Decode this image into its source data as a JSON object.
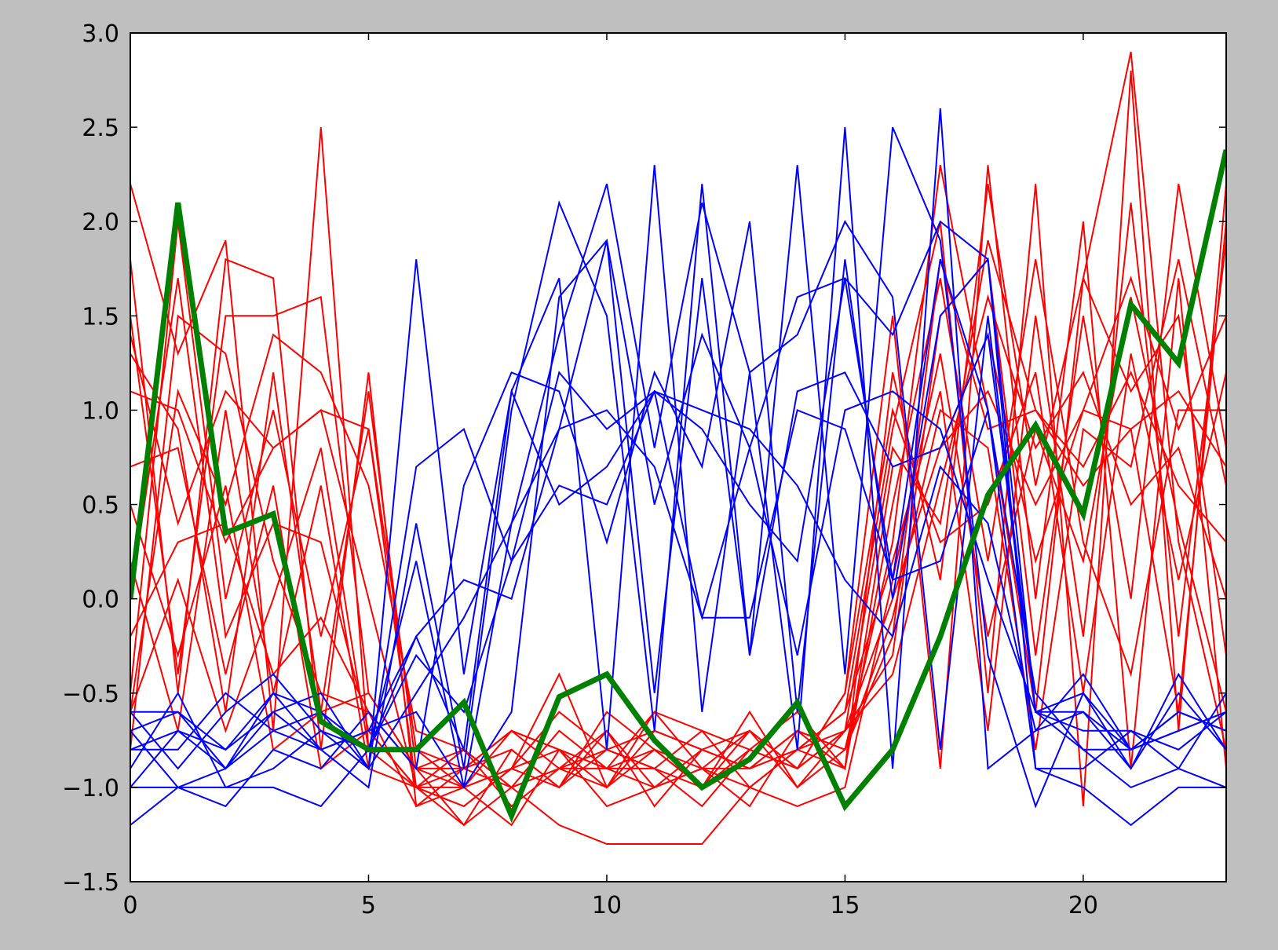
{
  "chart_data": {
    "type": "line",
    "title": "",
    "xlabel": "",
    "ylabel": "",
    "xlim": [
      0,
      23
    ],
    "ylim": [
      -1.5,
      3.0
    ],
    "grid": false,
    "legend": "none",
    "background": "#bfbfbf",
    "plot_background": "#ffffff",
    "x": [
      0,
      1,
      2,
      3,
      4,
      5,
      6,
      7,
      8,
      9,
      10,
      11,
      12,
      13,
      14,
      15,
      16,
      17,
      18,
      19,
      20,
      21,
      22,
      23
    ],
    "x_ticks": [
      0,
      5,
      10,
      15,
      20
    ],
    "x_tick_labels": [
      "0",
      "5",
      "10",
      "15",
      "20"
    ],
    "y_ticks": [
      -1.5,
      -1.0,
      -0.5,
      0.0,
      0.5,
      1.0,
      1.5,
      2.0,
      2.5,
      3.0
    ],
    "y_tick_labels": [
      "−1.5",
      "−1.0",
      "−0.5",
      "0.0",
      "0.5",
      "1.0",
      "1.5",
      "2.0",
      "2.5",
      "3.0"
    ],
    "series": [
      {
        "color": "#ff0000",
        "width": 2,
        "values": [
          2.2,
          1.3,
          1.9,
          -0.7,
          2.5,
          -0.8,
          -1.0,
          -0.9,
          -0.7,
          -0.9,
          -0.7,
          -1.1,
          -0.8,
          -0.9,
          -0.7,
          -0.8,
          0.3,
          2.3,
          1.0,
          -0.6,
          1.7,
          2.9,
          0.3,
          -0.8
        ]
      },
      {
        "color": "#ff0000",
        "width": 2,
        "values": [
          1.8,
          -0.5,
          1.8,
          1.7,
          -0.8,
          1.2,
          -1.1,
          -1.0,
          -0.9,
          -0.4,
          -1.0,
          -0.6,
          -0.9,
          -0.7,
          -0.9,
          -0.5,
          1.5,
          -0.9,
          2.3,
          0.0,
          2.0,
          -0.9,
          1.7,
          -0.9
        ]
      },
      {
        "color": "#ff0000",
        "width": 2,
        "values": [
          1.5,
          -0.4,
          1.5,
          1.5,
          1.6,
          -0.5,
          -0.9,
          -1.2,
          -0.8,
          -1.0,
          -0.6,
          -0.8,
          -0.9,
          -1.0,
          -0.8,
          -0.6,
          0.9,
          2.0,
          -0.5,
          2.2,
          -1.1,
          2.8,
          -0.7,
          2.2
        ]
      },
      {
        "color": "#ff0000",
        "width": 2,
        "values": [
          1.3,
          0.9,
          -0.6,
          1.2,
          -0.6,
          1.1,
          -0.9,
          -0.8,
          -1.0,
          -0.9,
          -0.9,
          -0.8,
          -1.0,
          -0.7,
          -0.9,
          -0.7,
          -0.3,
          1.5,
          1.8,
          -0.3,
          1.5,
          0.0,
          2.2,
          0.8
        ]
      },
      {
        "color": "#ff0000",
        "width": 2,
        "values": [
          1.1,
          1.0,
          0.3,
          0.8,
          1.0,
          0.9,
          -0.8,
          -0.9,
          -0.7,
          -0.8,
          -0.9,
          -0.6,
          -0.7,
          -0.8,
          -0.6,
          -0.9,
          0.7,
          0.8,
          1.1,
          0.5,
          1.0,
          1.7,
          0.9,
          1.5
        ]
      },
      {
        "color": "#ff0000",
        "width": 2,
        "values": [
          0.7,
          0.8,
          -0.4,
          0.6,
          -0.9,
          -0.7,
          -1.0,
          -1.1,
          -0.9,
          -0.6,
          -0.8,
          -0.7,
          -0.8,
          -0.9,
          -0.7,
          -0.8,
          -0.2,
          1.8,
          0.9,
          1.0,
          0.6,
          0.9,
          1.1,
          0.7
        ]
      },
      {
        "color": "#ff0000",
        "width": 2,
        "values": [
          0.5,
          -0.3,
          0.6,
          -0.8,
          -0.6,
          -0.5,
          -0.9,
          -1.0,
          -1.2,
          -0.8,
          -0.9,
          -0.9,
          -0.7,
          -1.0,
          -0.8,
          -0.6,
          0.2,
          1.1,
          -0.7,
          1.5,
          -0.2,
          2.1,
          -0.2,
          1.9
        ]
      },
      {
        "color": "#ff0000",
        "width": 2,
        "values": [
          0.0,
          1.7,
          -0.2,
          0.4,
          0.3,
          -0.7,
          -1.0,
          -0.8,
          -1.0,
          -0.9,
          -1.0,
          -0.8,
          -1.0,
          -0.6,
          -1.0,
          -0.7,
          -0.4,
          0.6,
          1.6,
          0.8,
          1.2,
          0.5,
          0.8,
          0.0
        ]
      },
      {
        "color": "#ff0000",
        "width": 2,
        "values": [
          -0.2,
          0.3,
          0.4,
          -0.4,
          -0.1,
          -0.6,
          -1.1,
          -0.9,
          -0.8,
          -1.0,
          -0.8,
          -0.9,
          -1.1,
          -0.8,
          -0.9,
          -0.5,
          1.0,
          0.3,
          0.5,
          1.2,
          -0.5,
          1.3,
          0.1,
          1.2
        ]
      },
      {
        "color": "#ff0000",
        "width": 2,
        "values": [
          -0.5,
          2.0,
          0.0,
          1.0,
          -0.2,
          0.9,
          -1.0,
          -1.1,
          -0.9,
          -1.0,
          -0.7,
          -1.0,
          -0.9,
          -1.1,
          -0.7,
          -0.9,
          1.2,
          0.1,
          2.2,
          0.6,
          1.7,
          1.1,
          1.5,
          -0.3
        ]
      },
      {
        "color": "#ff0000",
        "width": 2,
        "values": [
          -0.6,
          0.1,
          -0.7,
          0.0,
          0.8,
          -0.8,
          -0.8,
          -1.0,
          -0.7,
          -0.8,
          -1.0,
          -0.7,
          -0.8,
          -0.7,
          -1.0,
          -0.8,
          -0.1,
          1.0,
          0.8,
          -0.8,
          0.9,
          0.7,
          1.8,
          0.6
        ]
      },
      {
        "color": "#ff0000",
        "width": 2,
        "values": [
          -0.8,
          1.5,
          1.3,
          0.2,
          -0.5,
          -0.6,
          -0.9,
          -0.9,
          -1.0,
          -0.7,
          -0.9,
          -1.0,
          -0.8,
          -0.9,
          -0.8,
          -0.9,
          0.5,
          1.7,
          0.2,
          1.8,
          0.3,
          -0.4,
          1.0,
          1.0
        ]
      },
      {
        "color": "#ff0000",
        "width": 2,
        "values": [
          -0.6,
          1.1,
          0.5,
          1.4,
          1.2,
          0.6,
          -0.7,
          -0.8,
          -1.1,
          -0.9,
          -0.8,
          -0.9,
          -1.0,
          -0.8,
          -0.9,
          -0.7,
          0.0,
          0.8,
          1.4,
          0.2,
          1.0,
          0.9,
          -0.6,
          2.0
        ]
      },
      {
        "color": "#ff0000",
        "width": 2,
        "values": [
          0.2,
          -0.7,
          1.0,
          -0.5,
          0.6,
          -0.9,
          -1.0,
          -1.2,
          -1.0,
          -1.2,
          -1.3,
          -1.3,
          -1.3,
          -1.0,
          -1.1,
          -1.0,
          0.1,
          1.3,
          -0.2,
          0.9,
          0.2,
          1.6,
          0.4,
          -0.6
        ]
      },
      {
        "color": "#ff0000",
        "width": 2,
        "values": [
          1.4,
          0.4,
          1.1,
          0.8,
          1.0,
          0.0,
          -1.0,
          -1.0,
          -0.9,
          -0.8,
          -1.1,
          -1.0,
          -0.9,
          -0.9,
          -0.8,
          -0.7,
          0.8,
          0.4,
          1.9,
          1.0,
          0.7,
          1.2,
          0.6,
          0.3
        ]
      },
      {
        "color": "#0000ff",
        "width": 2,
        "values": [
          -0.7,
          -0.6,
          -0.9,
          -0.5,
          -0.6,
          -0.9,
          1.8,
          -0.4,
          1.1,
          1.7,
          -0.8,
          2.3,
          -0.6,
          1.2,
          -0.8,
          2.5,
          -0.9,
          2.6,
          -0.9,
          -0.7,
          -0.4,
          -0.8,
          -0.6,
          -0.7
        ]
      },
      {
        "color": "#0000ff",
        "width": 2,
        "values": [
          -0.8,
          -0.8,
          -0.5,
          -0.7,
          -0.8,
          -1.0,
          0.4,
          -0.9,
          1.0,
          2.1,
          1.5,
          -0.7,
          2.2,
          -0.3,
          2.3,
          -0.4,
          2.5,
          1.9,
          -0.3,
          -1.1,
          -0.5,
          -0.9,
          -0.4,
          -0.8
        ]
      },
      {
        "color": "#0000ff",
        "width": 2,
        "values": [
          -0.6,
          -0.9,
          -0.6,
          -0.4,
          -0.7,
          -0.8,
          0.2,
          -1.0,
          0.4,
          1.4,
          2.2,
          0.8,
          2.1,
          1.2,
          1.4,
          2.0,
          1.6,
          -0.8,
          1.5,
          -0.6,
          -0.6,
          -0.8,
          -0.7,
          -0.6
        ]
      },
      {
        "color": "#0000ff",
        "width": 2,
        "values": [
          -1.0,
          -0.7,
          -0.8,
          -0.6,
          -0.8,
          -0.7,
          -0.2,
          0.1,
          0.0,
          0.9,
          1.9,
          0.5,
          1.4,
          0.8,
          1.6,
          1.7,
          1.4,
          2.0,
          1.8,
          -0.6,
          -0.7,
          -0.7,
          -0.8,
          -0.6
        ]
      },
      {
        "color": "#0000ff",
        "width": 2,
        "values": [
          -1.2,
          -1.0,
          -1.1,
          -0.8,
          -0.9,
          -0.6,
          -0.9,
          0.6,
          1.2,
          1.1,
          0.3,
          1.2,
          0.7,
          2.0,
          -0.6,
          1.8,
          0.0,
          1.5,
          1.8,
          -0.9,
          -0.9,
          -0.7,
          -0.9,
          -0.5
        ]
      },
      {
        "color": "#0000ff",
        "width": 2,
        "values": [
          -0.9,
          -0.5,
          -1.0,
          -0.9,
          -0.7,
          -0.9,
          0.7,
          0.9,
          0.2,
          1.2,
          0.9,
          1.1,
          -0.1,
          -0.1,
          1.0,
          0.9,
          0.1,
          0.2,
          1.0,
          -0.5,
          -0.8,
          -1.0,
          -0.9,
          -1.0
        ]
      },
      {
        "color": "#0000ff",
        "width": 2,
        "values": [
          -1.0,
          -1.0,
          -1.0,
          -1.0,
          -1.1,
          -0.8,
          -0.2,
          -0.8,
          1.1,
          0.5,
          0.7,
          1.1,
          0.9,
          0.5,
          0.2,
          1.7,
          0.1,
          1.8,
          1.0,
          -0.9,
          -1.0,
          -1.2,
          -1.0,
          -1.0
        ]
      },
      {
        "color": "#0000ff",
        "width": 2,
        "values": [
          -0.7,
          -1.0,
          -0.9,
          -0.6,
          -0.5,
          -0.9,
          -0.5,
          -0.1,
          0.4,
          0.9,
          1.0,
          0.7,
          -0.1,
          0.8,
          -0.3,
          1.0,
          1.1,
          0.9,
          0.1,
          -0.6,
          -0.8,
          -0.8,
          -0.6,
          -0.7
        ]
      },
      {
        "color": "#0000ff",
        "width": 2,
        "values": [
          -0.8,
          -0.7,
          -0.9,
          -0.7,
          -0.6,
          -0.8,
          -0.3,
          -0.6,
          0.2,
          0.6,
          0.5,
          1.1,
          1.0,
          0.9,
          0.6,
          0.1,
          -0.2,
          0.7,
          0.4,
          -0.7,
          -0.6,
          -0.9,
          -0.5,
          -0.8
        ]
      },
      {
        "color": "#0000ff",
        "width": 2,
        "values": [
          -0.6,
          -0.6,
          -0.8,
          -0.5,
          -0.8,
          -0.7,
          -0.6,
          -1.0,
          -0.6,
          1.6,
          1.9,
          -0.5,
          1.7,
          -0.3,
          1.1,
          1.2,
          0.7,
          0.8,
          1.4,
          -0.6,
          -0.5,
          -0.8,
          -0.7,
          -0.6
        ]
      },
      {
        "color": "#008000",
        "width": 7,
        "values": [
          0.0,
          2.1,
          0.35,
          0.45,
          -0.65,
          -0.8,
          -0.8,
          -0.55,
          -1.15,
          -0.52,
          -0.4,
          -0.75,
          -1.0,
          -0.85,
          -0.55,
          -1.1,
          -0.8,
          -0.2,
          0.55,
          0.92,
          0.45,
          1.56,
          1.25,
          2.38
        ]
      }
    ]
  }
}
